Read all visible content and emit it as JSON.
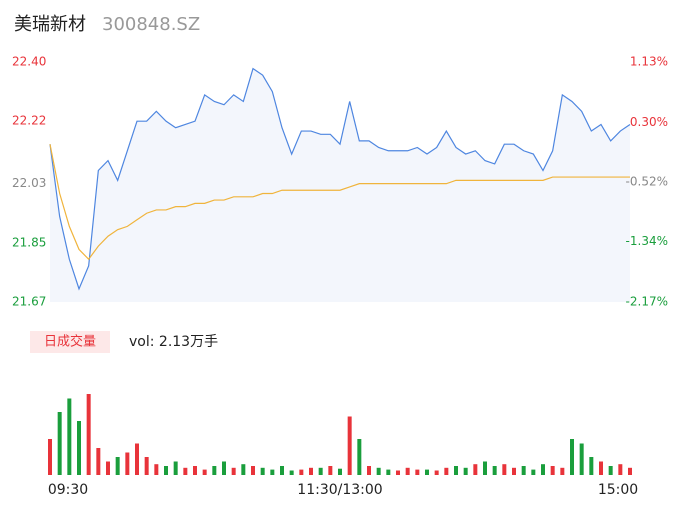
{
  "header": {
    "name": "美瑞新材",
    "code": "300848.SZ"
  },
  "chart_data": [
    {
      "type": "line",
      "x": [
        0,
        4,
        8,
        12,
        16,
        20,
        24,
        28,
        32,
        36,
        40,
        44,
        48,
        52,
        56,
        60,
        64,
        68,
        72,
        76,
        80,
        84,
        88,
        92,
        96,
        100,
        104,
        108,
        112,
        116,
        120,
        124,
        128,
        132,
        136,
        140,
        144,
        148,
        152,
        156,
        160,
        164,
        168,
        172,
        176,
        180,
        184,
        188,
        192,
        196,
        200,
        204,
        208,
        212,
        216,
        220,
        224,
        228,
        232,
        236,
        240
      ],
      "series": [
        {
          "name": "price",
          "color": "#4e86e0",
          "values": [
            22.15,
            21.93,
            21.8,
            21.71,
            21.78,
            22.07,
            22.1,
            22.04,
            22.13,
            22.22,
            22.22,
            22.25,
            22.22,
            22.2,
            22.21,
            22.22,
            22.3,
            22.28,
            22.27,
            22.3,
            22.28,
            22.38,
            22.36,
            22.31,
            22.2,
            22.12,
            22.19,
            22.19,
            22.18,
            22.18,
            22.15,
            22.28,
            22.16,
            22.16,
            22.14,
            22.13,
            22.13,
            22.13,
            22.14,
            22.12,
            22.14,
            22.19,
            22.14,
            22.12,
            22.13,
            22.1,
            22.09,
            22.15,
            22.15,
            22.13,
            22.12,
            22.07,
            22.13,
            22.3,
            22.28,
            22.25,
            22.19,
            22.21,
            22.16,
            22.19,
            22.21
          ]
        },
        {
          "name": "average",
          "color": "#f0b43c",
          "values": [
            22.15,
            22.0,
            21.9,
            21.83,
            21.8,
            21.84,
            21.87,
            21.89,
            21.9,
            21.92,
            21.94,
            21.95,
            21.95,
            21.96,
            21.96,
            21.97,
            21.97,
            21.98,
            21.98,
            21.99,
            21.99,
            21.99,
            22.0,
            22.0,
            22.01,
            22.01,
            22.01,
            22.01,
            22.01,
            22.01,
            22.01,
            22.02,
            22.03,
            22.03,
            22.03,
            22.03,
            22.03,
            22.03,
            22.03,
            22.03,
            22.03,
            22.03,
            22.04,
            22.04,
            22.04,
            22.04,
            22.04,
            22.04,
            22.04,
            22.04,
            22.04,
            22.04,
            22.05,
            22.05,
            22.05,
            22.05,
            22.05,
            22.05,
            22.05,
            22.05,
            22.05
          ]
        }
      ],
      "xlim": [
        0,
        240
      ],
      "ylim": [
        21.67,
        22.4
      ],
      "yticks": [
        {
          "value": 22.4,
          "label": "22.40"
        },
        {
          "value": 22.22,
          "label": "22.22"
        },
        {
          "value": 22.03,
          "label": "22.03"
        },
        {
          "value": 21.85,
          "label": "21.85"
        },
        {
          "value": 21.67,
          "label": "21.67"
        }
      ],
      "y2lim": [
        -2.17,
        1.13
      ],
      "y2ticks": [
        {
          "value": 1.13,
          "label": "1.13%"
        },
        {
          "value": 0.3,
          "label": "0.30%"
        },
        {
          "value": -0.52,
          "label": "-0.52%"
        },
        {
          "value": -1.34,
          "label": "-1.34%"
        },
        {
          "value": -2.17,
          "label": "-2.17%"
        }
      ],
      "tick_colors": [
        "#e8333a",
        "#e8333a",
        "#888888",
        "#1a9e3c",
        "#1a9e3c"
      ],
      "fill": "#f3f6fc"
    },
    {
      "type": "bar",
      "title": "日成交量",
      "subtitle": "vol: 2.13万手",
      "x": [
        0,
        4,
        8,
        12,
        16,
        20,
        24,
        28,
        32,
        36,
        40,
        44,
        48,
        52,
        56,
        60,
        64,
        68,
        72,
        76,
        80,
        84,
        88,
        92,
        96,
        100,
        104,
        108,
        112,
        116,
        120,
        124,
        128,
        132,
        136,
        140,
        144,
        148,
        152,
        156,
        160,
        164,
        168,
        172,
        176,
        180,
        184,
        188,
        192,
        196,
        200,
        204,
        208,
        212,
        216,
        220,
        224,
        228,
        232,
        236,
        240
      ],
      "values": [
        40,
        70,
        85,
        60,
        90,
        30,
        15,
        20,
        25,
        35,
        20,
        12,
        10,
        15,
        8,
        10,
        6,
        10,
        15,
        8,
        12,
        10,
        8,
        6,
        10,
        5,
        6,
        8,
        8,
        10,
        7,
        65,
        40,
        10,
        8,
        6,
        5,
        8,
        6,
        6,
        5,
        8,
        10,
        8,
        12,
        15,
        10,
        12,
        8,
        10,
        6,
        12,
        10,
        8,
        40,
        35,
        20,
        15,
        10,
        12,
        8
      ],
      "xlim": [
        0,
        240
      ],
      "ylim": [
        0,
        100
      ],
      "xticks": [
        {
          "value": 0,
          "label": "09:30"
        },
        {
          "value": 120,
          "label": "11:30/13:00"
        },
        {
          "value": 240,
          "label": "15:00"
        }
      ],
      "up_color": "#e8333a",
      "down_color": "#1a9e3c"
    }
  ]
}
